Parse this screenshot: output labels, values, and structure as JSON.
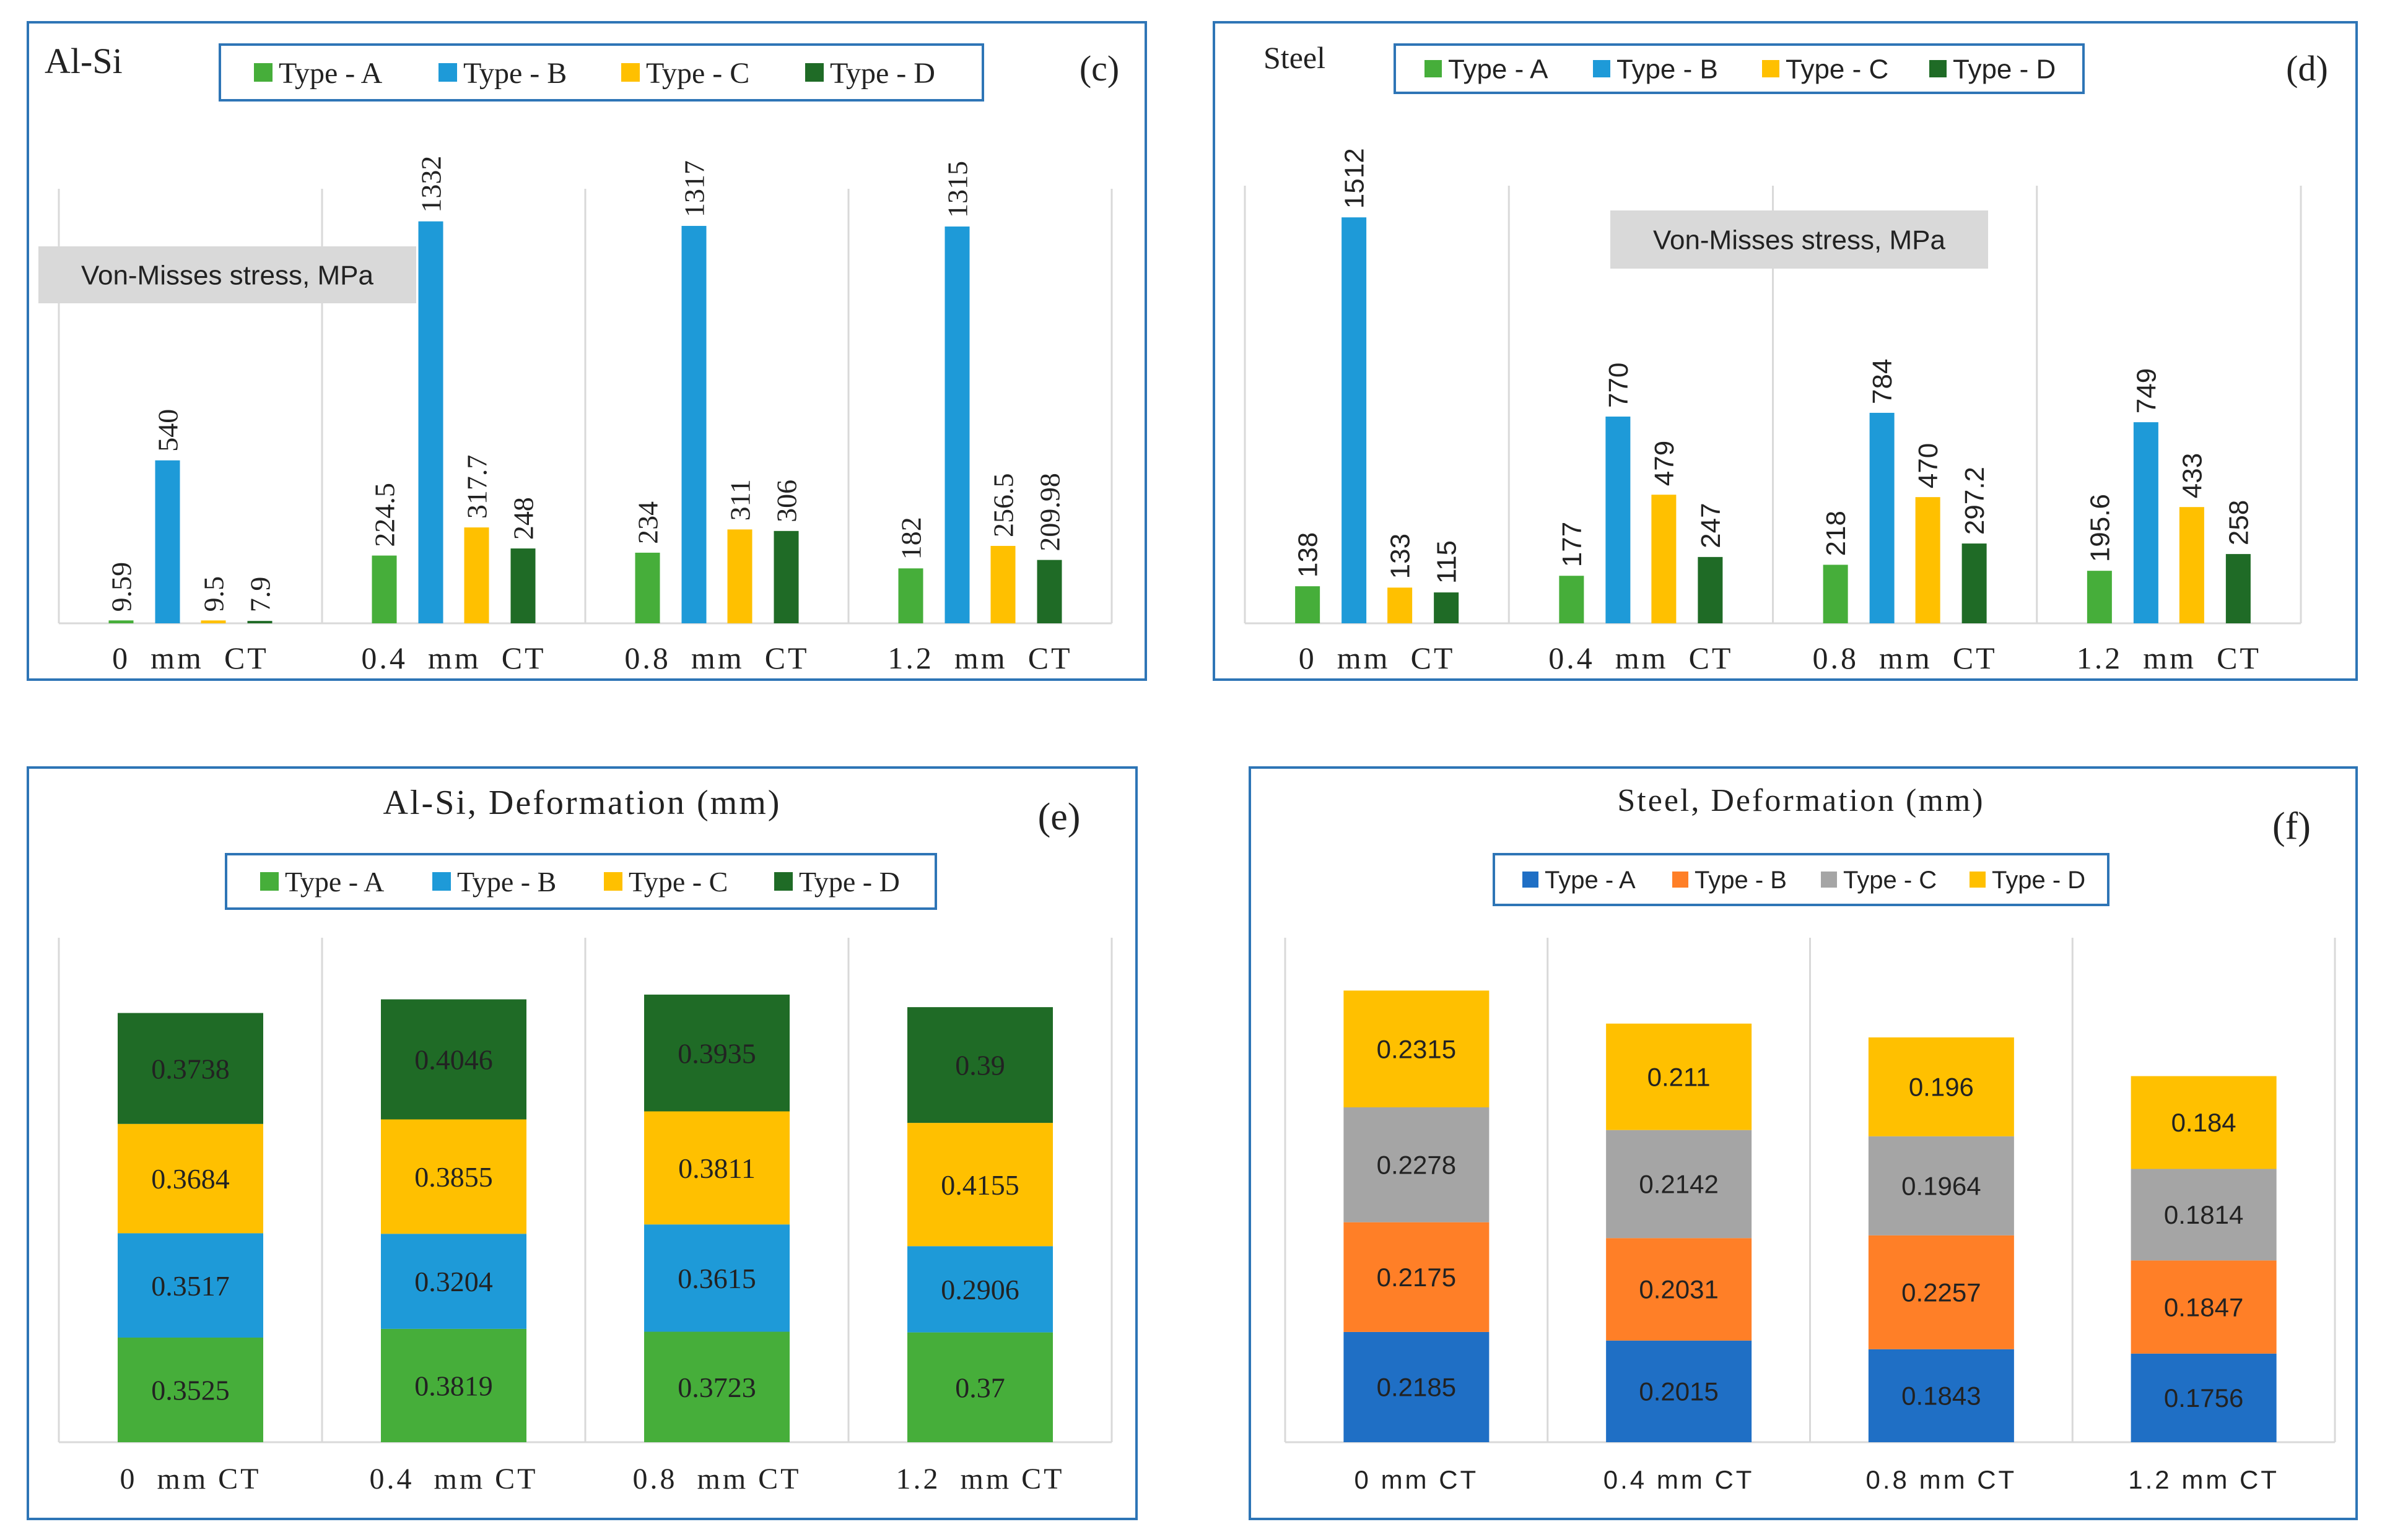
{
  "chart_data": [
    {
      "id": "c",
      "type": "bar",
      "title": "Al-Si",
      "panel_label": "(c)",
      "annotation": "Von-Misses stress, MPa",
      "legend_position": "top",
      "categories": [
        "0  mm  CT",
        "0.4  mm  CT",
        "0.8  mm  CT",
        "1.2  mm  CT"
      ],
      "ylim": [
        0,
        1440
      ],
      "series": [
        {
          "name": "Type - A",
          "color": "#46AE3A",
          "values": [
            9.59,
            224.5,
            234,
            182
          ]
        },
        {
          "name": "Type - B",
          "color": "#1E9AD8",
          "values": [
            540,
            1332,
            1317,
            1315
          ]
        },
        {
          "name": "Type - C",
          "color": "#FFC000",
          "values": [
            9.5,
            317.7,
            311,
            256.5
          ]
        },
        {
          "name": "Type - D",
          "color": "#1F6B26",
          "values": [
            7.9,
            248,
            306,
            209.98
          ]
        }
      ]
    },
    {
      "id": "d",
      "type": "bar",
      "title": "Steel",
      "panel_label": "(d)",
      "annotation": "Von-Misses stress, MPa",
      "legend_position": "top",
      "categories": [
        "0  mm  CT",
        "0.4  mm  CT",
        "0.8  mm  CT",
        "1.2  mm  CT"
      ],
      "ylim": [
        0,
        1630
      ],
      "series": [
        {
          "name": "Type - A",
          "color": "#46AE3A",
          "values": [
            138,
            177,
            218,
            195.6
          ]
        },
        {
          "name": "Type - B",
          "color": "#1E9AD8",
          "values": [
            1512,
            770,
            784,
            749
          ]
        },
        {
          "name": "Type - C",
          "color": "#FFC000",
          "values": [
            133,
            479,
            470,
            433
          ]
        },
        {
          "name": "Type - D",
          "color": "#1F6B26",
          "values": [
            115,
            247,
            297.2,
            258
          ]
        }
      ]
    },
    {
      "id": "e",
      "type": "bar",
      "stacked": true,
      "title": "Al-Si, Deformation (mm)",
      "panel_label": "(e)",
      "legend_position": "top",
      "categories": [
        "0  mm CT",
        "0.4  mm CT",
        "0.8  mm CT",
        "1.2  mm CT"
      ],
      "ylim": [
        0,
        1.7
      ],
      "series": [
        {
          "name": "Type - A",
          "color": "#46AE3A",
          "values": [
            0.3525,
            0.3819,
            0.3723,
            0.37
          ]
        },
        {
          "name": "Type - B",
          "color": "#1E9AD8",
          "values": [
            0.3517,
            0.3204,
            0.3615,
            0.2906
          ]
        },
        {
          "name": "Type - C",
          "color": "#FFC000",
          "values": [
            0.3684,
            0.3855,
            0.3811,
            0.4155
          ]
        },
        {
          "name": "Type - D",
          "color": "#1F6B26",
          "values": [
            0.3738,
            0.4046,
            0.3935,
            0.39
          ]
        }
      ]
    },
    {
      "id": "f",
      "type": "bar",
      "stacked": true,
      "title": "Steel, Deformation (mm)",
      "panel_label": "(f)",
      "legend_position": "top",
      "categories": [
        "0 mm CT",
        "0.4 mm CT",
        "0.8 mm CT",
        "1.2 mm CT"
      ],
      "ylim": [
        0,
        1.0
      ],
      "series": [
        {
          "name": "Type - A",
          "color": "#1F6FC5",
          "values": [
            0.2185,
            0.2015,
            0.1843,
            0.1756
          ]
        },
        {
          "name": "Type - B",
          "color": "#FF7F27",
          "values": [
            0.2175,
            0.2031,
            0.2257,
            0.1847
          ]
        },
        {
          "name": "Type - C",
          "color": "#A5A5A5",
          "values": [
            0.2278,
            0.2142,
            0.1964,
            0.1814
          ]
        },
        {
          "name": "Type - D",
          "color": "#FFC000",
          "values": [
            0.2315,
            0.211,
            0.196,
            0.184
          ]
        }
      ]
    }
  ]
}
